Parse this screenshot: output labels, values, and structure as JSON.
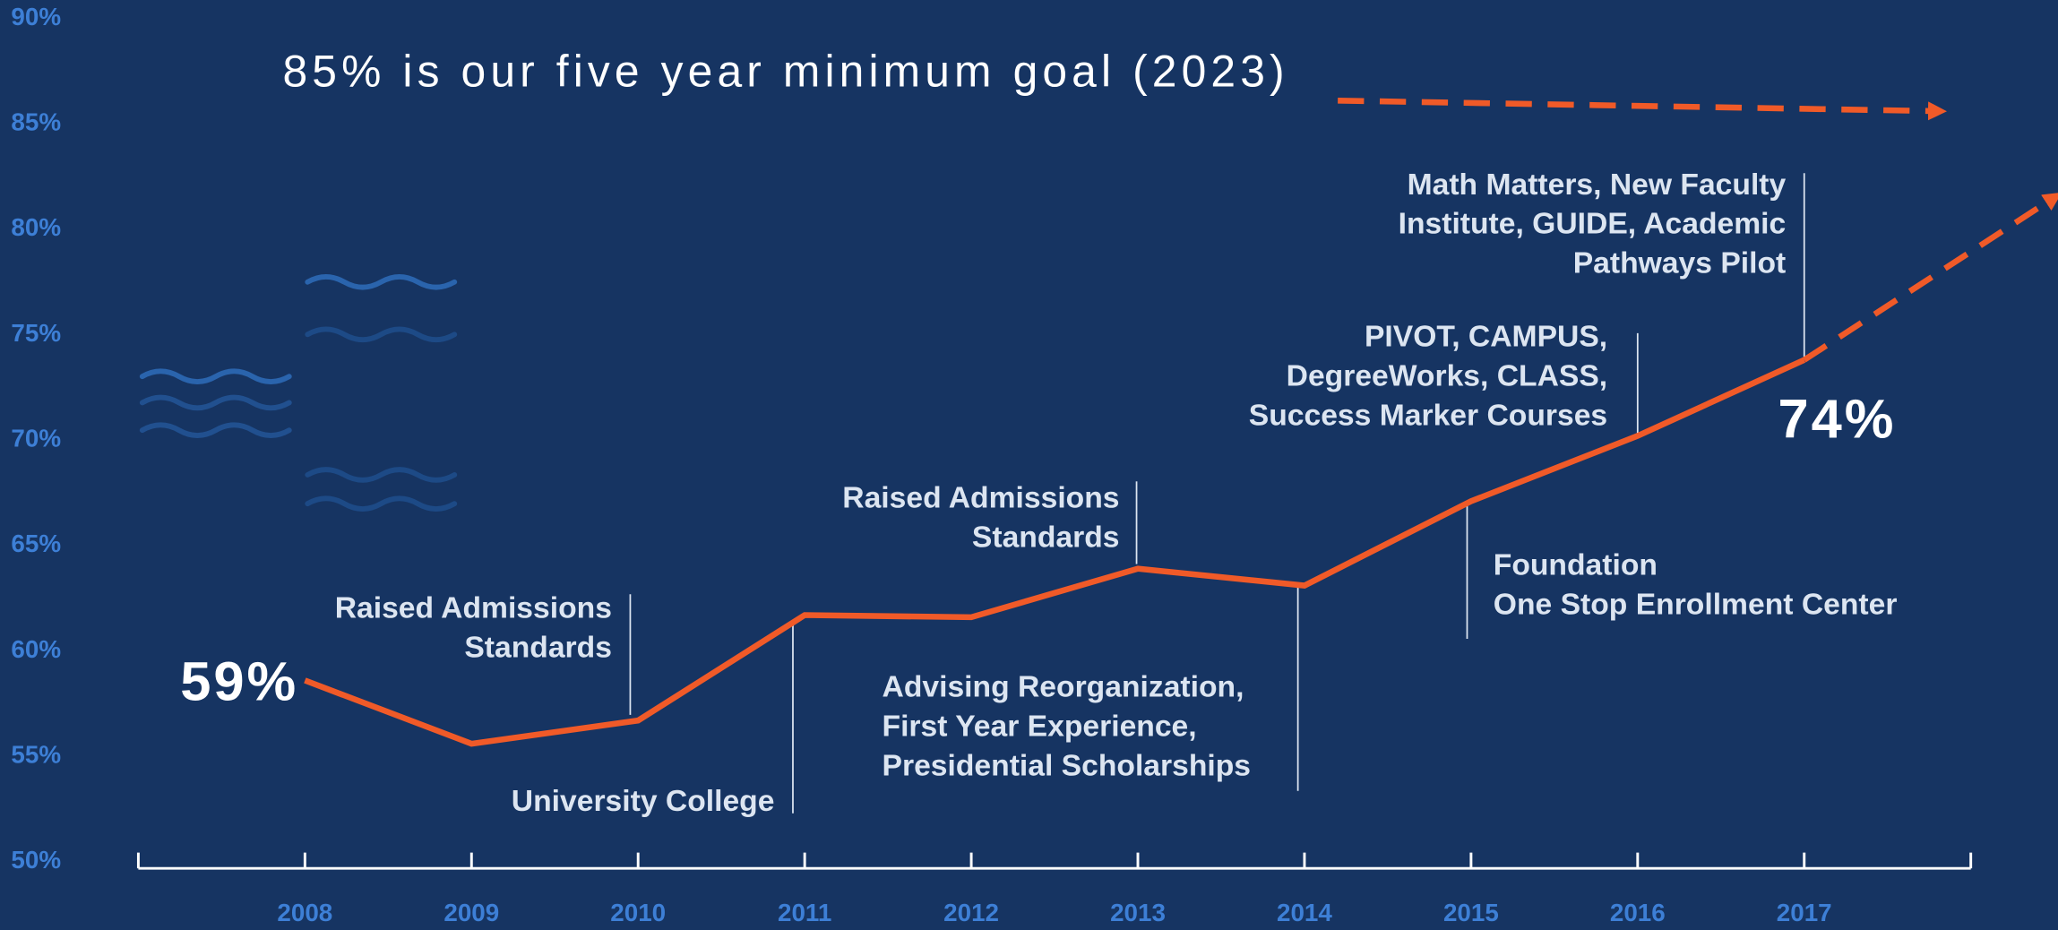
{
  "chart_data": {
    "type": "line",
    "title": "85% is our five year minimum goal (2023)",
    "xlim": [
      2007,
      2018
    ],
    "xticks": [
      2008,
      2009,
      2010,
      2011,
      2012,
      2013,
      2014,
      2015,
      2016,
      2017
    ],
    "ylim": [
      50,
      90
    ],
    "yticks": [
      {
        "value": 50,
        "label": "50%"
      },
      {
        "value": 55,
        "label": "55%"
      },
      {
        "value": 60,
        "label": "60%"
      },
      {
        "value": 65,
        "label": "65%"
      },
      {
        "value": 70,
        "label": "70%"
      },
      {
        "value": 75,
        "label": "75%"
      },
      {
        "value": 80,
        "label": "80%"
      },
      {
        "value": 85,
        "label": "85%"
      },
      {
        "value": 90,
        "label": "90%"
      }
    ],
    "series": [
      {
        "color": "#f05a28",
        "x": [
          2008,
          2009,
          2010,
          2011,
          2012,
          2013,
          2014,
          2015,
          2016,
          2017
        ],
        "values": [
          58.6,
          55.6,
          56.7,
          61.7,
          61.6,
          63.9,
          63.1,
          67.1,
          70.2,
          73.8
        ],
        "value_labels": [
          "59%",
          null,
          null,
          null,
          null,
          null,
          null,
          null,
          null,
          "74%"
        ]
      },
      {
        "color": "#f05a28",
        "dashed": true,
        "x": [
          2017,
          2018.5
        ],
        "values": [
          73.8,
          81.5
        ]
      },
      {
        "color": "#f05a28",
        "dashed": true,
        "x": [
          2014.2,
          2017.8
        ],
        "values": [
          86.1,
          85.6
        ]
      }
    ],
    "annotations": [
      {
        "lines": [
          "Raised Admissions",
          "Standards"
        ]
      },
      {
        "lines": [
          "University College"
        ]
      },
      {
        "lines": [
          "Raised Admissions",
          "Standards"
        ]
      },
      {
        "lines": [
          "Advising Reorganization,",
          "First Year Experience,",
          "Presidential Scholarships"
        ]
      },
      {
        "lines": [
          "Foundation",
          "One Stop Enrollment Center"
        ]
      },
      {
        "lines": [
          "PIVOT, CAMPUS,",
          "DegreeWorks, CLASS,",
          "Success Marker Courses"
        ]
      },
      {
        "lines": [
          "Math Matters, New Faculty",
          "Institute, GUIDE, Academic",
          "Pathways Pilot"
        ]
      }
    ]
  }
}
